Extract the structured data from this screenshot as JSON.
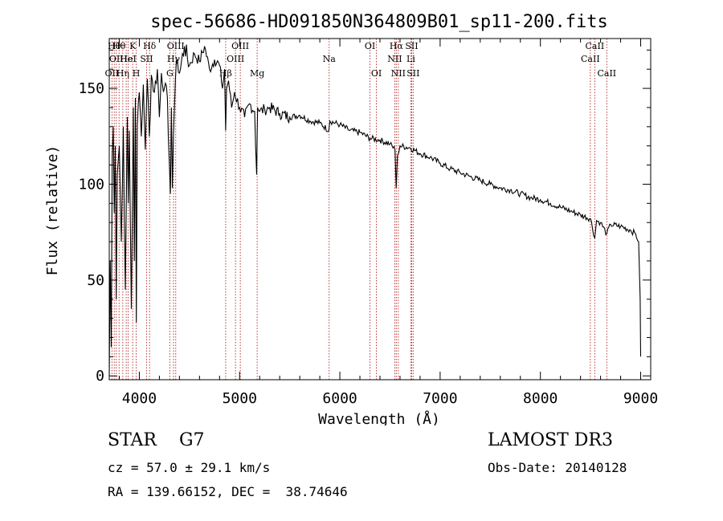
{
  "chart_data": {
    "type": "line",
    "title": "spec-56686-HD091850N364809B01_sp11-200.fits",
    "xlabel": "Wavelength (Å)",
    "ylabel": "Flux (relative)",
    "xlim": [
      3700,
      9100
    ],
    "ylim": [
      -2,
      176
    ],
    "xticks": [
      4000,
      5000,
      6000,
      7000,
      8000,
      9000
    ],
    "xtick_labels": [
      "4000",
      "5000",
      "6000",
      "7000",
      "8000",
      "9000"
    ],
    "yticks": [
      0,
      50,
      100,
      150
    ],
    "ytick_labels": [
      "0",
      "50",
      "100",
      "150"
    ],
    "grid": false,
    "series": [
      {
        "name": "flux",
        "color": "#000000",
        "x": [
          3700,
          3710,
          3720,
          3730,
          3740,
          3750,
          3760,
          3770,
          3780,
          3800,
          3820,
          3840,
          3860,
          3880,
          3890,
          3900,
          3920,
          3940,
          3950,
          3960,
          3970,
          3980,
          4000,
          4020,
          4040,
          4060,
          4080,
          4100,
          4120,
          4150,
          4180,
          4200,
          4220,
          4250,
          4280,
          4300,
          4310,
          4320,
          4330,
          4340,
          4360,
          4380,
          4400,
          4450,
          4500,
          4550,
          4600,
          4650,
          4700,
          4750,
          4800,
          4830,
          4850,
          4861,
          4870,
          4890,
          4920,
          4950,
          5000,
          5050,
          5100,
          5150,
          5170,
          5175,
          5180,
          5200,
          5250,
          5300,
          5400,
          5500,
          5600,
          5700,
          5800,
          5890,
          5900,
          6000,
          6100,
          6200,
          6300,
          6400,
          6500,
          6550,
          6562,
          6575,
          6600,
          6700,
          6800,
          6900,
          7000,
          7100,
          7200,
          7300,
          7400,
          7500,
          7600,
          7700,
          7800,
          7900,
          8000,
          8100,
          8200,
          8300,
          8400,
          8500,
          8542,
          8560,
          8600,
          8662,
          8700,
          8800,
          8900,
          8950,
          8980,
          8995,
          9000
        ],
        "y": [
          0,
          60,
          15,
          115,
          130,
          85,
          120,
          40,
          105,
          120,
          70,
          130,
          45,
          135,
          90,
          128,
          35,
          140,
          60,
          145,
          28,
          130,
          148,
          125,
          152,
          118,
          155,
          125,
          157,
          148,
          160,
          135,
          158,
          150,
          145,
          110,
          95,
          140,
          98,
          125,
          155,
          165,
          158,
          172,
          162,
          168,
          164,
          172,
          160,
          165,
          162,
          150,
          160,
          128,
          150,
          154,
          140,
          148,
          140,
          135,
          142,
          138,
          105,
          125,
          140,
          138,
          139,
          140,
          137,
          135,
          136,
          133,
          132,
          128,
          133,
          131,
          128,
          127,
          124,
          123,
          121,
          118,
          98,
          115,
          120,
          119,
          116,
          114,
          111,
          108,
          106,
          104,
          102,
          100,
          98,
          97,
          95,
          93,
          92,
          90,
          88,
          86,
          84,
          82,
          72,
          81,
          80,
          74,
          79,
          78,
          76,
          74,
          70,
          40,
          10
        ]
      }
    ],
    "line_markers": [
      {
        "wavelength": 3727,
        "label": "OII",
        "row": 3
      },
      {
        "wavelength": 3750,
        "label": "Hθ",
        "row": 1
      },
      {
        "wavelength": 3770,
        "label": "OII",
        "row": 2
      },
      {
        "wavelength": 3798,
        "label": "Hθ",
        "row": 1
      },
      {
        "wavelength": 3835,
        "label": "Hη",
        "row": 3
      },
      {
        "wavelength": 3869,
        "label": "He",
        "row": 2
      },
      {
        "wavelength": 3889,
        "label": "HeI",
        "row": 2
      },
      {
        "wavelength": 3934,
        "label": "K",
        "row": 1
      },
      {
        "wavelength": 3969,
        "label": "H",
        "row": 3
      },
      {
        "wavelength": 4072,
        "label": "SII",
        "row": 2
      },
      {
        "wavelength": 4102,
        "label": "Hδ",
        "row": 1
      },
      {
        "wavelength": 4304,
        "label": "G",
        "row": 3
      },
      {
        "wavelength": 4341,
        "label": "Hγ",
        "row": 2
      },
      {
        "wavelength": 4363,
        "label": "OIII",
        "row": 1
      },
      {
        "wavelength": 4861,
        "label": "Hβ",
        "row": 3
      },
      {
        "wavelength": 4959,
        "label": "OIII",
        "row": 2
      },
      {
        "wavelength": 5007,
        "label": "OIII",
        "row": 1
      },
      {
        "wavelength": 5175,
        "label": "Mg",
        "row": 3
      },
      {
        "wavelength": 5893,
        "label": "Na",
        "row": 2
      },
      {
        "wavelength": 6300,
        "label": "OI",
        "row": 1
      },
      {
        "wavelength": 6364,
        "label": "OI",
        "row": 3
      },
      {
        "wavelength": 6548,
        "label": "NII",
        "row": 2
      },
      {
        "wavelength": 6563,
        "label": "Hα",
        "row": 1
      },
      {
        "wavelength": 6583,
        "label": "NII",
        "row": 3
      },
      {
        "wavelength": 6708,
        "label": "Li",
        "row": 2
      },
      {
        "wavelength": 6716,
        "label": "SII",
        "row": 1
      },
      {
        "wavelength": 6731,
        "label": "SII",
        "row": 3
      },
      {
        "wavelength": 8498,
        "label": "CaII",
        "row": 2
      },
      {
        "wavelength": 8542,
        "label": "CaII",
        "row": 1
      },
      {
        "wavelength": 8662,
        "label": "CaII",
        "row": 3
      }
    ]
  },
  "info": {
    "object_class": "STAR",
    "subclass": "G7",
    "survey": "LAMOST DR3",
    "cz": "cz = 57.0 ± 29.1 km/s",
    "obs_date": "Obs-Date: 20140128",
    "radec": "RA = 139.66152, DEC =  38.74646"
  },
  "colors": {
    "spectrum": "#000000",
    "line_marker": "#b22222",
    "axes": "#000000"
  }
}
